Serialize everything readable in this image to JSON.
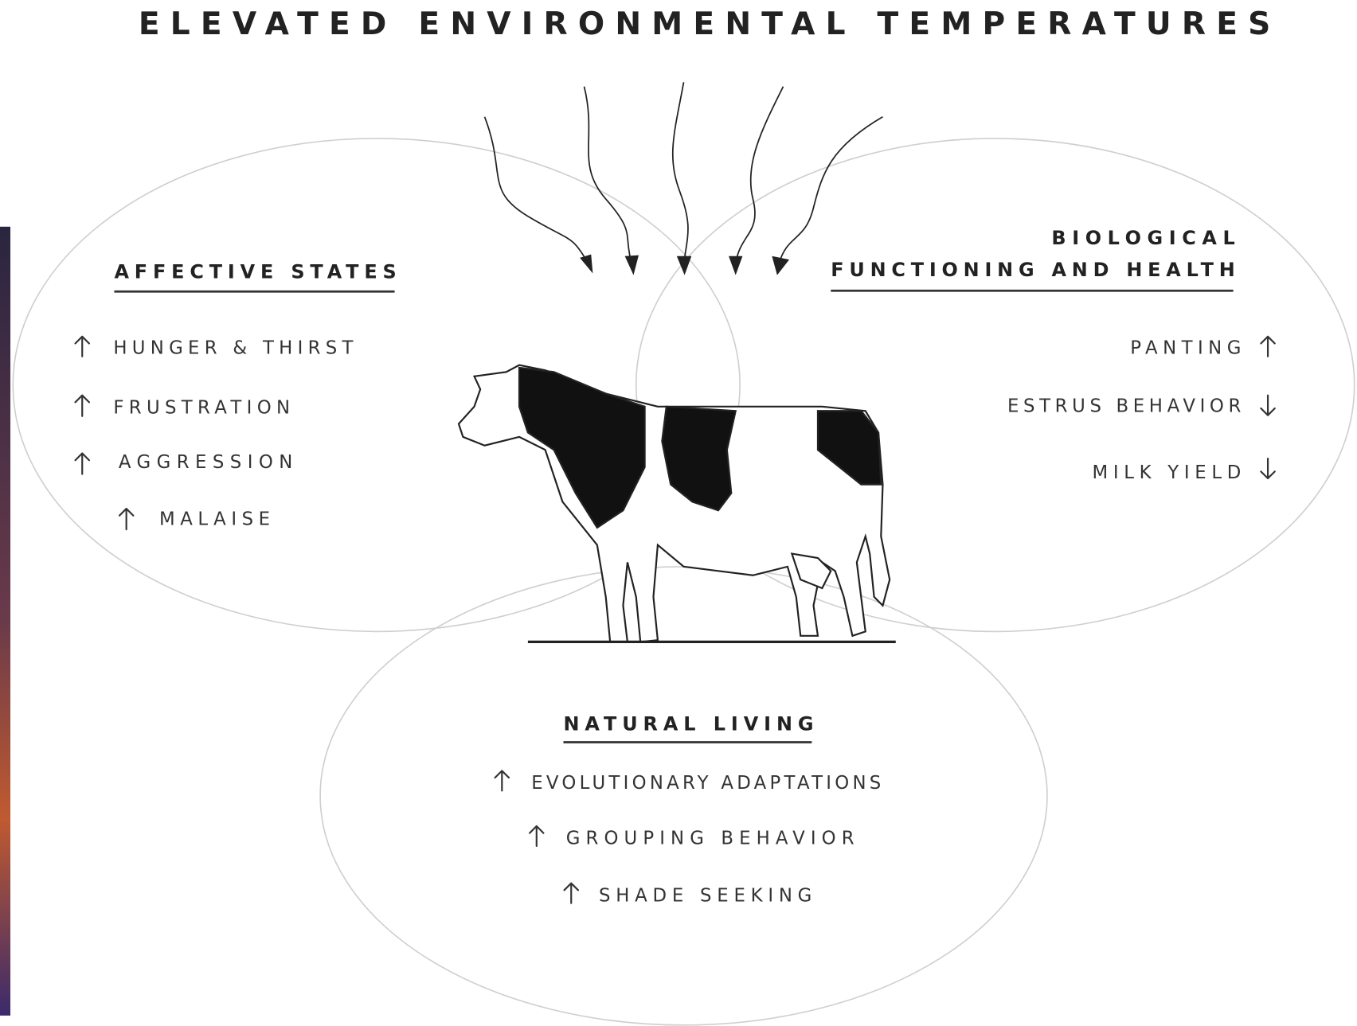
{
  "title": "ELEVATED ENVIRONMENTAL TEMPERATURES",
  "affective_states": {
    "heading": "AFFECTIVE STATES",
    "items": [
      "HUNGER & THIRST",
      "FRUSTRATION",
      "AGGRESSION",
      "MALAISE"
    ]
  },
  "biological_functioning": {
    "heading": [
      "BIOLOGICAL",
      "FUNCTIONING AND HEALTH"
    ],
    "items": [
      "PANTING",
      "ESTRUS BEHAVIOR",
      "MILK YIELD"
    ]
  },
  "natural_living": {
    "heading": "NATURAL LIVING",
    "items": [
      "EVOLUTIONARY ADAPTATIONS",
      "GROUPING BEHAVIOR",
      "SHADE SEEKING"
    ]
  }
}
